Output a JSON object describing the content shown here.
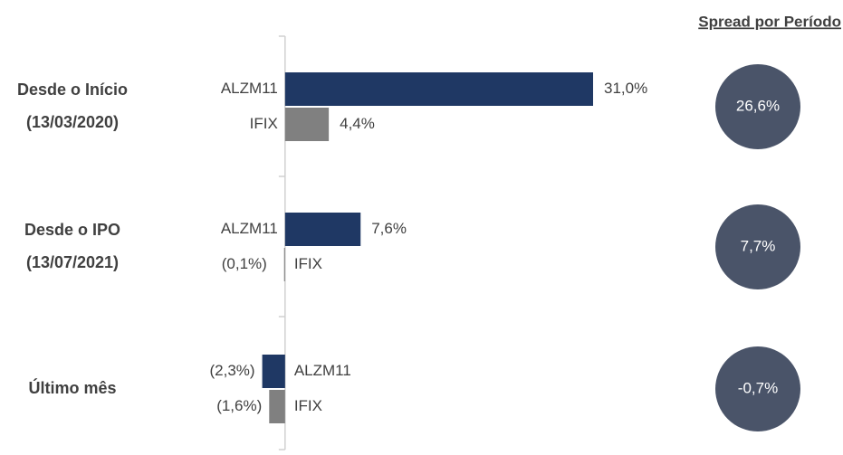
{
  "chart_data": {
    "type": "bar",
    "orientation": "horizontal",
    "categories": [
      "Desde o Início\n(13/03/2020)",
      "Desde o IPO\n(13/07/2021)",
      "Último mês"
    ],
    "series": [
      {
        "name": "ALZM11",
        "color": "#1f3864",
        "values": [
          31.0,
          7.6,
          -2.3
        ],
        "value_labels": [
          "31,0%",
          "7,6%",
          "(2,3%)"
        ]
      },
      {
        "name": "IFIX",
        "color": "#808080",
        "values": [
          4.4,
          -0.1,
          -1.6
        ],
        "value_labels": [
          "4,4%",
          "(0,1%)",
          "(1,6%)"
        ]
      }
    ],
    "xlim": [
      -6,
      31
    ],
    "spread": {
      "title": "Spread por Período",
      "color": "#4a5469",
      "values": [
        26.6,
        7.7,
        -0.7
      ],
      "value_labels": [
        "26,6%",
        "7,7%",
        "-0,7%"
      ]
    }
  }
}
